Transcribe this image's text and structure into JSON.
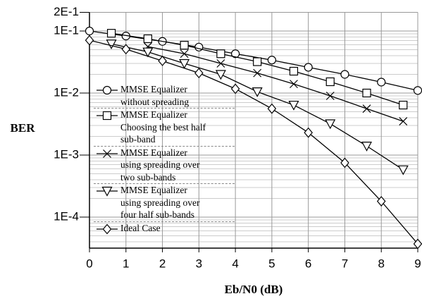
{
  "chart_data": {
    "type": "line",
    "x_label": "Eb/N0 (dB)",
    "y_label": "BER",
    "log_y": true,
    "grid": true,
    "xlim": [
      0,
      9
    ],
    "xticks": [
      0,
      1,
      2,
      3,
      4,
      5,
      6,
      7,
      8,
      9
    ],
    "ylim": [
      3.16e-05,
      0.2
    ],
    "yticks": [
      {
        "value": 0.2,
        "label": "2E-1"
      },
      {
        "value": 0.1,
        "label": "1E-1"
      },
      {
        "value": 0.01,
        "label": "1E-2"
      },
      {
        "value": 0.001,
        "label": "1E-3"
      },
      {
        "value": 0.0001,
        "label": "1E-4"
      }
    ],
    "series": [
      {
        "name": "MMSE Equalizer\nwithout spreading",
        "color": "#000000",
        "marker": "circle",
        "x": [
          0,
          1,
          2,
          3,
          4,
          5,
          6,
          7,
          8,
          9
        ],
        "values": [
          0.1,
          0.083,
          0.068,
          0.055,
          0.043,
          0.034,
          0.026,
          0.02,
          0.015,
          0.011
        ]
      },
      {
        "name": "MMSE Equalizer\nChoosing the best half\nsub-band",
        "color": "#000000",
        "marker": "square",
        "x": [
          0.6,
          1.6,
          2.6,
          3.6,
          4.6,
          5.6,
          6.6,
          7.6,
          8.6
        ],
        "values": [
          0.092,
          0.075,
          0.059,
          0.043,
          0.032,
          0.0225,
          0.0152,
          0.01,
          0.0064
        ]
      },
      {
        "name": "MMSE Equalizer\nusing spreading over\ntwo sub-bands",
        "color": "#000000",
        "marker": "x",
        "x": [
          1.6,
          2.6,
          3.6,
          4.6,
          5.6,
          6.6,
          7.6,
          8.6
        ],
        "values": [
          0.056,
          0.043,
          0.03,
          0.021,
          0.014,
          0.009,
          0.0056,
          0.0035
        ]
      },
      {
        "name": "MMSE Equalizer\nusing spreading over\nfour half sub-bands",
        "color": "#000000",
        "marker": "triangle",
        "x": [
          0.6,
          1.6,
          2.6,
          3.6,
          4.6,
          5.6,
          6.6,
          7.6,
          8.6
        ],
        "values": [
          0.062,
          0.046,
          0.03,
          0.02,
          0.0105,
          0.0064,
          0.0032,
          0.0014,
          0.00058
        ]
      },
      {
        "name": "Ideal Case",
        "color": "#000000",
        "marker": "diamond",
        "x": [
          0,
          1,
          2,
          3,
          4,
          5,
          6,
          7,
          8,
          9
        ],
        "values": [
          0.071,
          0.051,
          0.033,
          0.021,
          0.0117,
          0.0056,
          0.0023,
          0.00075,
          0.00018,
          3.7e-05
        ]
      }
    ]
  }
}
